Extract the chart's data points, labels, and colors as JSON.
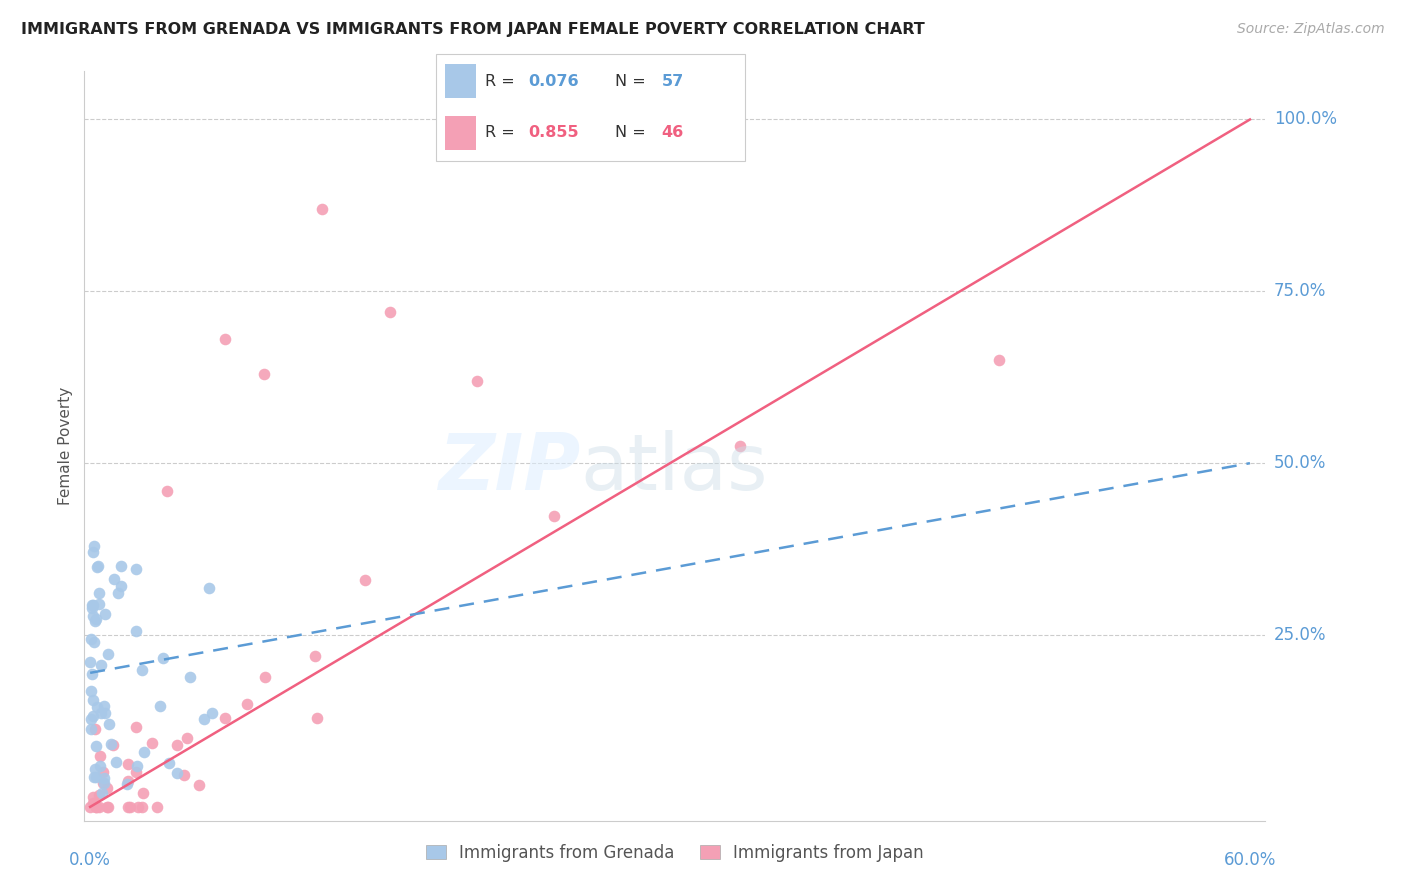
{
  "title": "IMMIGRANTS FROM GRENADA VS IMMIGRANTS FROM JAPAN FEMALE POVERTY CORRELATION CHART",
  "source": "Source: ZipAtlas.com",
  "ylabel": "Female Poverty",
  "right_yticks": [
    "100.0%",
    "75.0%",
    "50.0%",
    "25.0%"
  ],
  "right_ytick_vals": [
    1.0,
    0.75,
    0.5,
    0.25
  ],
  "xlim": [
    0.0,
    0.6
  ],
  "ylim": [
    0.0,
    1.05
  ],
  "grenada_color": "#a8c8e8",
  "japan_color": "#f4a0b5",
  "grenada_line_color": "#5b9bd5",
  "japan_line_color": "#f06080",
  "japan_line_x0": 0.0,
  "japan_line_y0": 0.0,
  "japan_line_x1": 0.6,
  "japan_line_y1": 1.0,
  "grenada_line_x0": 0.0,
  "grenada_line_y0": 0.195,
  "grenada_line_x1": 0.6,
  "grenada_line_y1": 0.5,
  "grenada_R": "0.076",
  "grenada_N": "57",
  "japan_R": "0.855",
  "japan_N": "46"
}
